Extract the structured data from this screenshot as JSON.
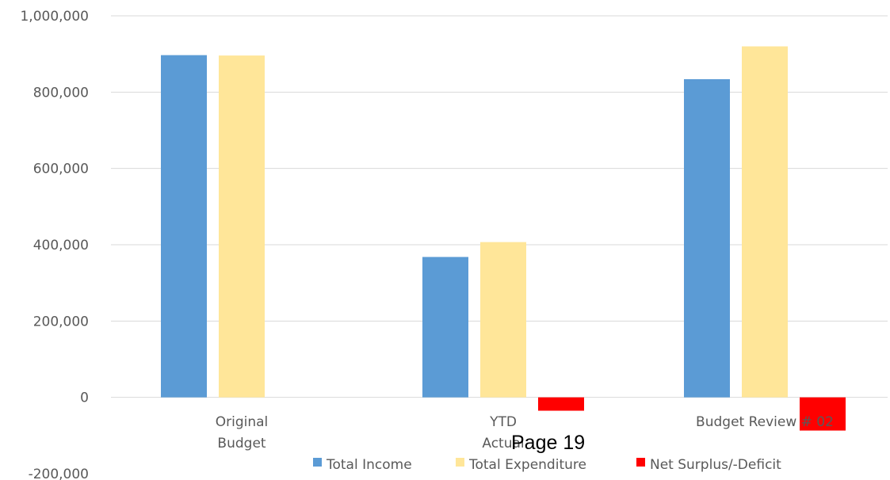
{
  "footer": {
    "page_label": "Page 19"
  },
  "colors": {
    "total_income": "#5B9BD5",
    "total_expenditure": "#FFE699",
    "net_surplus_deficit": "#FF0000",
    "gridline": "#D9D9D9",
    "text": "#595959"
  },
  "chart_data": {
    "type": "bar",
    "title": "",
    "xlabel": "",
    "ylabel": "",
    "categories": [
      [
        "Original",
        "Budget"
      ],
      [
        "YTD",
        "Actual"
      ],
      [
        "Budget Review # 02"
      ]
    ],
    "series": [
      {
        "name": "Total Income",
        "color": "#5B9BD5",
        "values": [
          897000,
          368000,
          834000
        ]
      },
      {
        "name": "Total Expenditure",
        "color": "#FFE699",
        "values": [
          896000,
          407000,
          920000
        ]
      },
      {
        "name": "Net Surplus/-Deficit",
        "color": "#FF0000",
        "values": [
          null,
          -35000,
          -87000
        ]
      }
    ],
    "ylim": [
      -200000,
      1000000
    ],
    "yticks": [
      {
        "value": 1000000,
        "label": "1,000,000"
      },
      {
        "value": 800000,
        "label": "800,000"
      },
      {
        "value": 600000,
        "label": "600,000"
      },
      {
        "value": 400000,
        "label": "400,000"
      },
      {
        "value": 200000,
        "label": "200,000"
      },
      {
        "value": 0,
        "label": "0"
      },
      {
        "value": -200000,
        "label": "-200,000"
      }
    ],
    "grid": true,
    "legend": "bottom"
  }
}
